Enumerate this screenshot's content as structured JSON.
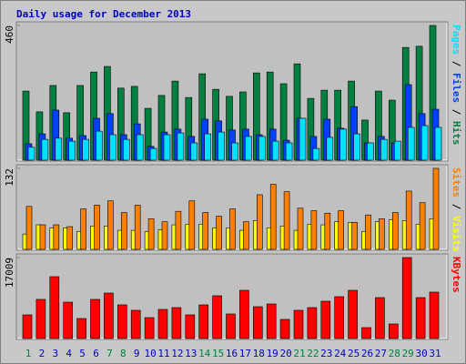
{
  "chart_data": [
    {
      "type": "bar",
      "title": "Daily usage for December 2013",
      "title_color": "#0000c0",
      "ylim": [
        0,
        460
      ],
      "yticks": [
        460
      ],
      "legend_separator": " / ",
      "series": [
        {
          "name": "Pages",
          "color": "#00e0ff",
          "values": [
            44,
            71,
            75,
            65,
            71,
            99,
            87,
            71,
            87,
            40,
            87,
            93,
            59,
            90,
            96,
            59,
            81,
            81,
            65,
            59,
            143,
            40,
            78,
            106,
            90,
            59,
            71,
            65,
            112,
            118,
            112
          ]
        },
        {
          "name": "Files",
          "color": "#0040ff",
          "values": [
            56,
            90,
            171,
            75,
            84,
            143,
            159,
            87,
            124,
            47,
            96,
            106,
            81,
            140,
            134,
            103,
            106,
            87,
            106,
            68,
            143,
            81,
            140,
            109,
            183,
            59,
            81,
            59,
            258,
            159,
            174
          ]
        },
        {
          "name": "Hits",
          "color": "#008040",
          "values": [
            236,
            165,
            255,
            162,
            255,
            301,
            320,
            246,
            252,
            177,
            221,
            270,
            214,
            295,
            242,
            218,
            233,
            298,
            301,
            261,
            329,
            211,
            239,
            239,
            270,
            137,
            236,
            205,
            385,
            389,
            460
          ]
        }
      ]
    },
    {
      "type": "bar",
      "ylim": [
        0,
        132
      ],
      "yticks": [
        132
      ],
      "legend_separator": " / ",
      "series": [
        {
          "name": "Sites",
          "color": "#ff8000",
          "values": [
            70,
            40,
            40,
            37,
            66,
            72,
            79,
            60,
            72,
            50,
            45,
            62,
            79,
            60,
            54,
            66,
            45,
            89,
            106,
            94,
            67,
            63,
            59,
            63,
            44,
            56,
            50,
            60,
            95,
            76,
            132
          ]
        },
        {
          "name": "Visits",
          "color": "#ffff00",
          "values": [
            25,
            40,
            35,
            35,
            29,
            38,
            38,
            31,
            31,
            29,
            32,
            40,
            41,
            41,
            35,
            35,
            31,
            47,
            35,
            38,
            31,
            41,
            40,
            45,
            44,
            29,
            45,
            48,
            47,
            41,
            50
          ]
        }
      ]
    },
    {
      "type": "bar",
      "ylim": [
        0,
        17009
      ],
      "yticks": [
        17009
      ],
      "legend_separator": " / ",
      "series": [
        {
          "name": "KBytes",
          "color": "#ff0000",
          "values": [
            4969,
            8218,
            12996,
            7645,
            4204,
            8218,
            9556,
            7071,
            5924,
            4396,
            6115,
            6497,
            4969,
            7071,
            8982,
            5160,
            10129,
            6688,
            7262,
            4013,
            5924,
            6497,
            7835,
            8791,
            10129,
            2293,
            8600,
            3058,
            17009,
            8600,
            9747
          ]
        }
      ],
      "categories": [
        "1",
        "2",
        "3",
        "4",
        "5",
        "6",
        "7",
        "8",
        "9",
        "10",
        "11",
        "12",
        "13",
        "14",
        "15",
        "16",
        "17",
        "18",
        "19",
        "20",
        "21",
        "22",
        "23",
        "24",
        "25",
        "26",
        "27",
        "28",
        "29",
        "30",
        "31"
      ],
      "category_colors": [
        "#008040",
        "#0000c0",
        "#0000c0",
        "#0000c0",
        "#0000c0",
        "#0000c0",
        "#008040",
        "#008040",
        "#0000c0",
        "#0000c0",
        "#0000c0",
        "#0000c0",
        "#0000c0",
        "#008040",
        "#008040",
        "#0000c0",
        "#0000c0",
        "#0000c0",
        "#0000c0",
        "#0000c0",
        "#008040",
        "#008040",
        "#0000c0",
        "#0000c0",
        "#0000c0",
        "#0000c0",
        "#0000c0",
        "#008040",
        "#008040",
        "#0000c0",
        "#0000c0"
      ]
    }
  ]
}
